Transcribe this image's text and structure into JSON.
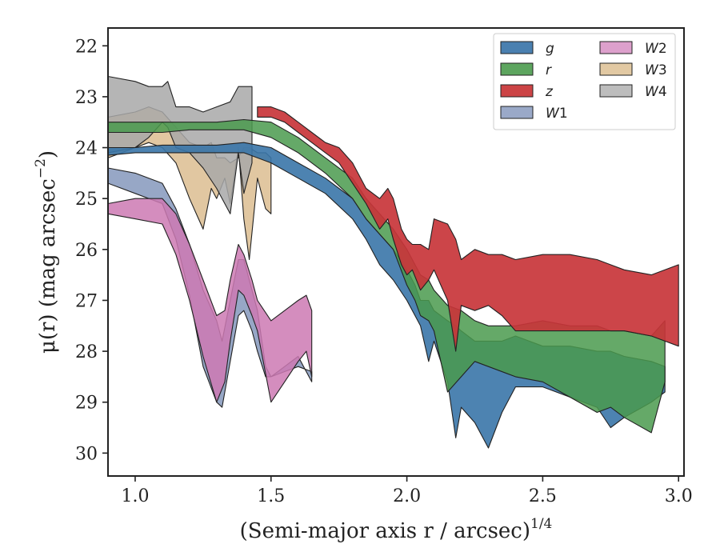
{
  "chart_data": {
    "type": "area",
    "xlabel": "(Semi-major axis r / arcsec)",
    "xlabel_exponent": "1/4",
    "ylabel": "μ(r) (mag arcsec",
    "ylabel_exponent": "−2",
    "ylabel_close": ")",
    "xlim": [
      0.9,
      3.02
    ],
    "ylim": [
      30.45,
      21.65
    ],
    "y_inverted": true,
    "xticks": [
      1.0,
      1.5,
      2.0,
      2.5,
      3.0
    ],
    "xtick_labels": [
      "1.0",
      "1.5",
      "2.0",
      "2.5",
      "3.0"
    ],
    "yticks": [
      22,
      23,
      24,
      25,
      26,
      27,
      28,
      29,
      30
    ],
    "ytick_labels": [
      "22",
      "23",
      "24",
      "25",
      "26",
      "27",
      "28",
      "29",
      "30"
    ],
    "grid": false,
    "legend_position": "top-right",
    "legend_columns": 2,
    "series": [
      {
        "name": "W1",
        "label_main": "W",
        "label_sub": "1",
        "color": "#8c9dc0",
        "legend_color": "#9aa9c8",
        "opacity": 0.9,
        "x": [
          0.9,
          1.0,
          1.1,
          1.15,
          1.2,
          1.25,
          1.3,
          1.32,
          1.35,
          1.38,
          1.4,
          1.43,
          1.45,
          1.48,
          1.5,
          1.55,
          1.6,
          1.65
        ],
        "y_bright": [
          24.4,
          24.5,
          24.7,
          25.2,
          25.9,
          26.8,
          27.4,
          27.8,
          27.0,
          26.2,
          26.2,
          26.8,
          27.2,
          28.3,
          28.5,
          28.4,
          28.3,
          28.4
        ],
        "y_faint": [
          24.7,
          24.9,
          25.1,
          25.8,
          26.9,
          28.3,
          29.0,
          29.1,
          28.2,
          27.3,
          27.2,
          27.6,
          28.0,
          28.5,
          28.5,
          28.3,
          28.1,
          28.6
        ]
      },
      {
        "name": "W2",
        "label_main": "W",
        "label_sub": "2",
        "color": "#cc79b3",
        "legend_color": "#dda0cc",
        "opacity": 0.85,
        "x": [
          0.9,
          1.0,
          1.1,
          1.15,
          1.2,
          1.25,
          1.3,
          1.33,
          1.35,
          1.38,
          1.4,
          1.43,
          1.45,
          1.5,
          1.55,
          1.6,
          1.63,
          1.65
        ],
        "y_bright": [
          25.1,
          25.0,
          25.0,
          25.3,
          25.9,
          26.6,
          27.3,
          27.2,
          26.6,
          25.9,
          26.1,
          26.6,
          27.0,
          27.4,
          27.2,
          27.0,
          26.9,
          27.2
        ],
        "y_faint": [
          25.3,
          25.4,
          25.5,
          26.1,
          27.0,
          28.1,
          29.0,
          28.6,
          27.8,
          26.8,
          26.9,
          27.3,
          27.6,
          29.0,
          28.6,
          28.2,
          28.0,
          28.5
        ]
      },
      {
        "name": "W3",
        "label_main": "W",
        "label_sub": "3",
        "color": "#d9b98a",
        "legend_color": "#e2c9a3",
        "opacity": 0.8,
        "x": [
          0.9,
          1.0,
          1.05,
          1.1,
          1.15,
          1.2,
          1.25,
          1.28,
          1.3,
          1.33,
          1.35,
          1.38,
          1.4,
          1.42,
          1.45,
          1.48,
          1.5
        ],
        "y_bright": [
          23.4,
          23.3,
          23.2,
          23.3,
          23.6,
          23.9,
          24.0,
          23.9,
          24.2,
          24.2,
          24.3,
          24.2,
          24.0,
          24.0,
          24.1,
          24.1,
          24.2
        ],
        "y_faint": [
          24.2,
          24.0,
          23.9,
          24.0,
          24.3,
          25.0,
          25.6,
          24.8,
          25.0,
          24.6,
          25.1,
          24.0,
          25.4,
          26.2,
          24.6,
          25.2,
          25.3
        ]
      },
      {
        "name": "W4",
        "label_main": "W",
        "label_sub": "4",
        "color": "#a8a8a8",
        "legend_color": "#bdbdbd",
        "opacity": 0.85,
        "x": [
          0.9,
          1.0,
          1.05,
          1.1,
          1.12,
          1.15,
          1.2,
          1.25,
          1.3,
          1.35,
          1.38,
          1.4,
          1.43
        ],
        "y_bright": [
          22.6,
          22.7,
          22.8,
          22.8,
          22.7,
          23.2,
          23.2,
          23.3,
          23.2,
          23.1,
          22.8,
          22.8,
          22.8
        ],
        "y_faint": [
          24.1,
          24.0,
          23.8,
          23.5,
          23.6,
          24.0,
          24.1,
          24.4,
          24.8,
          25.3,
          24.1,
          24.9,
          24.3
        ]
      },
      {
        "name": "g",
        "label_main": "g",
        "label_sub": "",
        "color": "#3a76a9",
        "legend_color": "#4a80b0",
        "opacity": 0.9,
        "x": [
          0.9,
          1.0,
          1.1,
          1.2,
          1.3,
          1.4,
          1.5,
          1.6,
          1.7,
          1.8,
          1.85,
          1.9,
          1.95,
          2.0,
          2.03,
          2.05,
          2.08,
          2.1,
          2.15,
          2.18,
          2.2,
          2.25,
          2.3,
          2.35,
          2.4,
          2.5,
          2.6,
          2.7,
          2.75,
          2.8,
          2.9,
          2.95
        ],
        "y_bright": [
          24.0,
          24.0,
          23.95,
          23.95,
          23.95,
          23.9,
          24.0,
          24.3,
          24.6,
          25.0,
          25.4,
          25.7,
          26.0,
          26.4,
          26.7,
          27.0,
          27.0,
          27.2,
          27.4,
          27.5,
          27.6,
          27.8,
          27.8,
          27.8,
          27.7,
          27.9,
          27.9,
          28.0,
          28.0,
          28.1,
          28.2,
          28.3
        ],
        "y_faint": [
          24.15,
          24.1,
          24.1,
          24.1,
          24.1,
          24.1,
          24.3,
          24.6,
          24.9,
          25.4,
          25.8,
          26.3,
          26.6,
          27.0,
          27.3,
          27.5,
          28.2,
          27.8,
          28.6,
          29.7,
          29.1,
          29.4,
          29.9,
          29.2,
          28.7,
          28.7,
          28.9,
          29.1,
          29.5,
          29.3,
          29.0,
          28.8
        ]
      },
      {
        "name": "r",
        "label_main": "r",
        "label_sub": "",
        "color": "#4a9a4e",
        "legend_color": "#5da55f",
        "opacity": 0.85,
        "x": [
          0.9,
          1.0,
          1.1,
          1.2,
          1.3,
          1.4,
          1.5,
          1.6,
          1.7,
          1.8,
          1.85,
          1.9,
          1.95,
          2.0,
          2.03,
          2.05,
          2.08,
          2.1,
          2.15,
          2.2,
          2.25,
          2.3,
          2.4,
          2.5,
          2.6,
          2.7,
          2.75,
          2.8,
          2.9,
          2.95
        ],
        "y_bright": [
          23.5,
          23.5,
          23.5,
          23.5,
          23.5,
          23.45,
          23.5,
          23.8,
          24.2,
          24.6,
          25.0,
          25.3,
          25.6,
          26.0,
          26.3,
          26.5,
          26.6,
          26.8,
          27.1,
          27.2,
          27.4,
          27.5,
          27.5,
          27.4,
          27.5,
          27.5,
          27.6,
          27.6,
          27.7,
          27.4
        ],
        "y_faint": [
          23.7,
          23.7,
          23.7,
          23.65,
          23.65,
          23.65,
          23.8,
          24.1,
          24.5,
          25.0,
          25.4,
          25.7,
          26.0,
          26.7,
          27.0,
          27.3,
          27.4,
          27.6,
          28.8,
          28.5,
          28.2,
          28.3,
          28.5,
          28.6,
          28.9,
          29.2,
          29.1,
          29.3,
          29.6,
          28.6
        ]
      },
      {
        "name": "z",
        "label_main": "z",
        "label_sub": "",
        "color": "#c8353a",
        "legend_color": "#cc4446",
        "opacity": 0.92,
        "x": [
          1.45,
          1.5,
          1.55,
          1.6,
          1.65,
          1.7,
          1.75,
          1.8,
          1.85,
          1.9,
          1.93,
          1.95,
          1.98,
          2.0,
          2.02,
          2.05,
          2.08,
          2.1,
          2.15,
          2.18,
          2.2,
          2.25,
          2.3,
          2.35,
          2.4,
          2.5,
          2.6,
          2.7,
          2.8,
          2.9,
          3.0
        ],
        "y_bright": [
          23.2,
          23.2,
          23.3,
          23.5,
          23.7,
          23.9,
          24.0,
          24.3,
          24.8,
          25.0,
          24.8,
          25.0,
          25.6,
          25.8,
          25.9,
          25.9,
          26.0,
          25.4,
          25.5,
          25.8,
          26.2,
          26.0,
          26.1,
          26.1,
          26.2,
          26.1,
          26.1,
          26.2,
          26.4,
          26.5,
          26.3
        ],
        "y_faint": [
          23.4,
          23.4,
          23.5,
          23.7,
          23.9,
          24.1,
          24.3,
          24.7,
          25.1,
          25.6,
          25.4,
          25.8,
          26.3,
          26.5,
          26.4,
          26.8,
          26.6,
          26.4,
          27.0,
          28.0,
          27.1,
          27.2,
          27.1,
          27.3,
          27.6,
          27.6,
          27.6,
          27.6,
          27.6,
          27.7,
          27.9
        ]
      }
    ],
    "legend_order": [
      "g",
      "r",
      "z",
      "W1",
      "W2",
      "W3",
      "W4"
    ]
  }
}
